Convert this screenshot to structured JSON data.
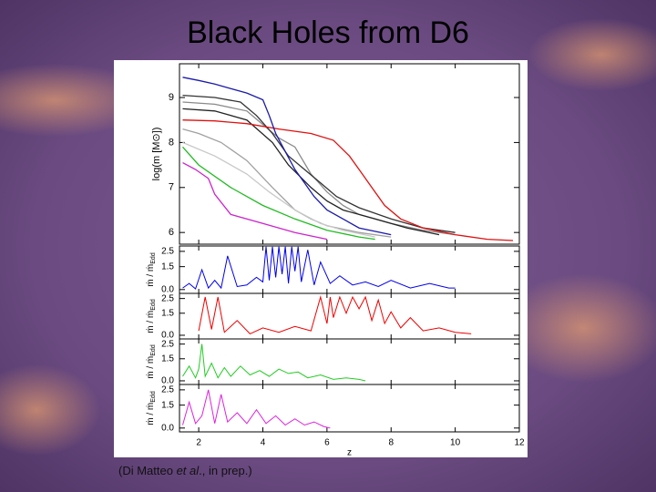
{
  "slide": {
    "title": "Black Holes from D6",
    "caption": [
      "(Di Matteo ",
      "et al",
      "., in prep.)"
    ]
  },
  "chart_data": [
    {
      "type": "line",
      "ylabel": "log(m [M⊙])",
      "xlim": [
        1.4,
        12
      ],
      "ylim": [
        5.74,
        9.75
      ],
      "yticks": [
        6,
        7,
        8,
        9
      ],
      "series": [
        {
          "color": "#8a8a8a",
          "x": [
            1.5,
            2.5,
            3.5,
            4.0,
            4.5,
            5.0,
            5.5,
            6.0,
            6.5,
            7.0,
            8.0,
            9.0,
            10.0
          ],
          "values": [
            8.9,
            8.85,
            8.7,
            8.4,
            8.1,
            7.9,
            7.3,
            6.9,
            6.6,
            6.4,
            6.2,
            6.05,
            5.95
          ]
        },
        {
          "color": "#a0a0a0",
          "x": [
            1.5,
            2.0,
            2.7,
            3.5,
            4.3,
            5.0,
            5.5,
            6.0,
            7.0,
            8.0
          ],
          "values": [
            8.3,
            8.2,
            8.0,
            7.6,
            7.0,
            6.5,
            6.3,
            6.15,
            6.0,
            5.9
          ]
        },
        {
          "color": "#c8c8c8",
          "x": [
            1.5,
            2.5,
            3.5,
            4.2,
            5.0,
            5.8,
            6.5,
            7.5
          ],
          "values": [
            8.0,
            7.7,
            7.3,
            6.9,
            6.5,
            6.2,
            6.05,
            5.9
          ]
        },
        {
          "color": "#333333",
          "x": [
            1.5,
            2.5,
            3.3,
            3.8,
            4.3,
            4.8,
            5.3,
            5.8,
            6.3,
            7.0,
            8.0,
            9.0,
            10.0
          ],
          "values": [
            9.05,
            9.0,
            8.9,
            8.6,
            8.2,
            7.7,
            7.4,
            7.1,
            6.8,
            6.55,
            6.3,
            6.1,
            6.0
          ]
        },
        {
          "color": "#222222",
          "x": [
            1.5,
            2.5,
            3.5,
            4.3,
            4.8,
            5.5,
            6.0,
            6.5,
            7.5,
            8.5,
            9.5
          ],
          "values": [
            8.75,
            8.7,
            8.5,
            8.0,
            7.5,
            7.0,
            6.7,
            6.5,
            6.3,
            6.1,
            5.95
          ]
        },
        {
          "color": "#dd1111",
          "x": [
            1.5,
            2.5,
            3.5,
            4.5,
            5.5,
            6.2,
            6.7,
            7.0,
            7.4,
            7.8,
            8.3,
            9.0,
            10.0,
            11.0,
            11.8
          ],
          "values": [
            8.5,
            8.48,
            8.42,
            8.3,
            8.2,
            8.05,
            7.7,
            7.4,
            7.0,
            6.6,
            6.3,
            6.1,
            5.95,
            5.85,
            5.82
          ]
        },
        {
          "color": "#1a1aaa",
          "x": [
            1.5,
            2.0,
            2.5,
            3.0,
            3.5,
            4.0,
            4.2,
            4.4,
            4.7,
            5.0,
            5.3,
            5.6,
            6.0,
            6.5,
            7.0,
            8.0
          ],
          "values": [
            9.45,
            9.38,
            9.3,
            9.2,
            9.1,
            8.95,
            8.6,
            8.2,
            7.8,
            7.4,
            7.1,
            6.8,
            6.5,
            6.3,
            6.1,
            5.95
          ]
        },
        {
          "color": "#22bb22",
          "x": [
            1.5,
            2.0,
            3.0,
            4.0,
            5.0,
            6.0,
            7.0,
            7.5
          ],
          "values": [
            7.9,
            7.5,
            7.0,
            6.6,
            6.3,
            6.05,
            5.9,
            5.85
          ]
        },
        {
          "color": "#cc22cc",
          "x": [
            1.5,
            1.9,
            2.3,
            2.5,
            3.0,
            4.0,
            5.0,
            6.0
          ],
          "values": [
            7.55,
            7.4,
            7.2,
            6.85,
            6.4,
            6.2,
            6.0,
            5.85
          ]
        }
      ]
    },
    {
      "type": "line",
      "ylabel": "ṁ / ṁ",
      "ylabel_sub": "Edd",
      "xlim": [
        1.4,
        12
      ],
      "ylim": [
        -0.25,
        2.85
      ],
      "yticks": [
        {
          "value": 0,
          "label": "0.0"
        },
        1.5,
        2.5
      ],
      "series": [
        {
          "color": "#0000ee",
          "x": [
            1.5,
            1.7,
            1.9,
            2.1,
            2.3,
            2.5,
            2.7,
            2.9,
            3.2,
            3.5,
            3.8,
            4.0,
            4.1,
            4.2,
            4.3,
            4.4,
            4.5,
            4.6,
            4.7,
            4.8,
            4.9,
            5.0,
            5.1,
            5.2,
            5.4,
            5.6,
            5.8,
            6.1,
            6.4,
            6.8,
            7.2,
            7.6,
            8.0,
            8.6,
            9.2,
            9.8,
            10.0
          ],
          "values": [
            0.1,
            0.4,
            0.05,
            1.3,
            0.1,
            0.6,
            0.1,
            2.2,
            0.2,
            0.3,
            0.8,
            0.5,
            2.8,
            0.6,
            2.8,
            0.8,
            2.8,
            1.0,
            2.8,
            0.4,
            2.8,
            1.2,
            2.8,
            0.5,
            2.6,
            0.3,
            1.8,
            0.4,
            0.9,
            0.3,
            0.5,
            0.2,
            0.6,
            0.1,
            0.4,
            0.1,
            0.1
          ]
        }
      ]
    },
    {
      "type": "line",
      "ylabel": "ṁ / ṁ",
      "ylabel_sub": "Edd",
      "xlim": [
        1.4,
        12
      ],
      "ylim": [
        -0.25,
        2.85
      ],
      "yticks": [
        {
          "value": 0,
          "label": "0.0"
        },
        1.5,
        2.5
      ],
      "series": [
        {
          "color": "#ee0000",
          "x": [
            2.0,
            2.2,
            2.4,
            2.6,
            2.8,
            3.2,
            3.6,
            4.0,
            4.5,
            5.0,
            5.5,
            5.8,
            6.0,
            6.1,
            6.2,
            6.4,
            6.6,
            6.8,
            7.0,
            7.2,
            7.4,
            7.6,
            7.8,
            8.0,
            8.3,
            8.6,
            9.0,
            9.5,
            10.0,
            10.5
          ],
          "values": [
            0.3,
            2.6,
            0.4,
            2.6,
            0.2,
            1.0,
            0.1,
            0.5,
            0.2,
            0.6,
            0.3,
            2.6,
            0.8,
            2.6,
            1.2,
            2.6,
            1.5,
            2.6,
            1.8,
            2.6,
            1.0,
            2.4,
            0.8,
            1.6,
            0.5,
            1.2,
            0.3,
            0.5,
            0.2,
            0.1
          ]
        }
      ]
    },
    {
      "type": "line",
      "ylabel": "ṁ / ṁ",
      "ylabel_sub": "Edd",
      "xlim": [
        1.4,
        12
      ],
      "ylim": [
        -0.25,
        2.85
      ],
      "yticks": [
        {
          "value": 0,
          "label": "0.0"
        },
        1.5,
        2.5
      ],
      "series": [
        {
          "color": "#22cc22",
          "x": [
            1.5,
            1.7,
            1.9,
            2.0,
            2.1,
            2.2,
            2.4,
            2.6,
            2.8,
            3.0,
            3.3,
            3.6,
            3.9,
            4.2,
            4.5,
            4.8,
            5.1,
            5.4,
            5.8,
            6.2,
            6.6,
            7.0,
            7.2
          ],
          "values": [
            0.3,
            1.0,
            0.2,
            0.8,
            2.5,
            0.3,
            1.2,
            0.2,
            0.9,
            0.3,
            1.0,
            0.4,
            0.7,
            0.3,
            0.8,
            0.5,
            0.6,
            0.2,
            0.4,
            0.1,
            0.2,
            0.1,
            0.0
          ]
        }
      ]
    },
    {
      "type": "line",
      "ylabel": "ṁ / ṁ",
      "ylabel_sub": "Edd",
      "xlabel": "z",
      "xlim": [
        1.4,
        12
      ],
      "ylim": [
        -0.25,
        2.85
      ],
      "yticks": [
        {
          "value": 0,
          "label": "0.0"
        },
        1.5,
        2.5
      ],
      "xticks": [
        2,
        4,
        6,
        8,
        10,
        12
      ],
      "series": [
        {
          "color": "#dd22dd",
          "x": [
            1.5,
            1.7,
            1.9,
            2.1,
            2.3,
            2.5,
            2.7,
            2.9,
            3.2,
            3.5,
            3.8,
            4.1,
            4.4,
            4.7,
            5.0,
            5.3,
            5.6,
            5.9,
            6.1
          ],
          "values": [
            0.2,
            1.7,
            0.3,
            0.8,
            2.5,
            0.3,
            2.2,
            0.4,
            1.0,
            0.3,
            1.2,
            0.3,
            0.8,
            0.2,
            0.6,
            0.2,
            0.4,
            0.1,
            0.0
          ]
        }
      ]
    }
  ]
}
